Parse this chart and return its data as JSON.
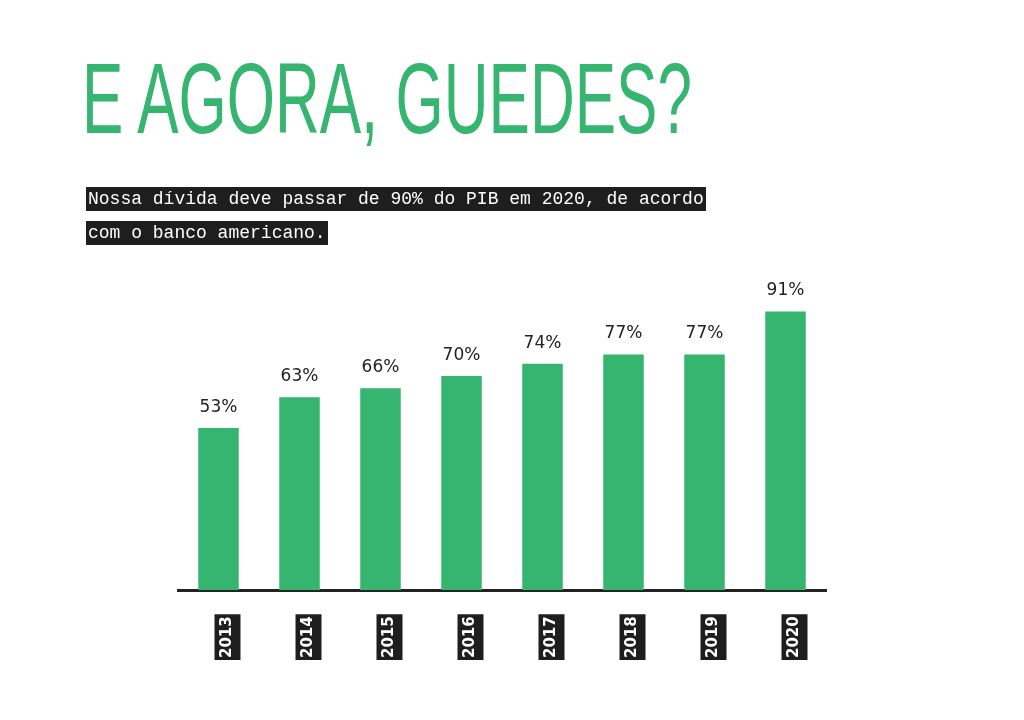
{
  "chart_data": {
    "type": "bar",
    "title": "E AGORA, GUEDES?",
    "subtitle": "Nossa dívida deve passar de 90% do PIB em 2020, de acordo com o banco americano.",
    "categories": [
      "2013",
      "2014",
      "2015",
      "2016",
      "2017",
      "2018",
      "2019",
      "2020"
    ],
    "values": [
      53,
      63,
      66,
      70,
      74,
      77,
      77,
      91
    ],
    "value_labels": [
      "53%",
      "63%",
      "66%",
      "70%",
      "74%",
      "77%",
      "77%",
      "91%"
    ],
    "color": "#35b56f",
    "tick_labels": "x",
    "grid": false,
    "legend": false
  }
}
